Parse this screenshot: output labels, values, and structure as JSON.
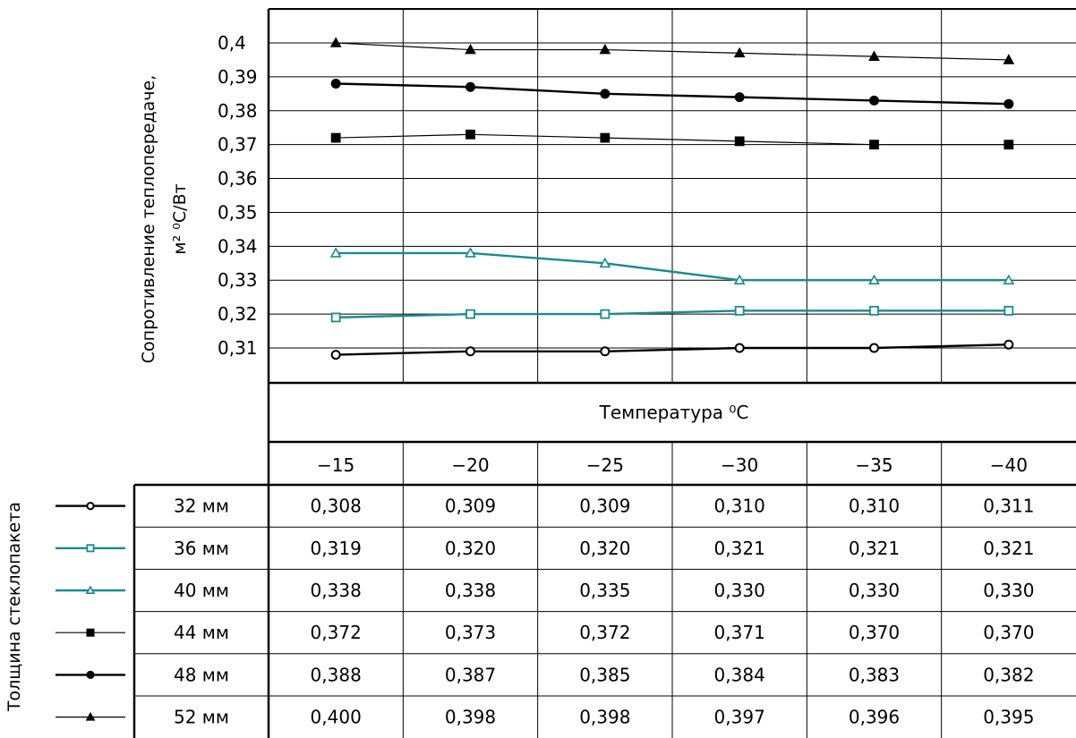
{
  "chart_data": {
    "type": "line",
    "ylabel_line1": "Сопротивление теплопередаче,",
    "ylabel_line2": "м² ⁰С/Вт",
    "xlabel": "Температура ⁰С",
    "table_label": "Толщина стеклопакета",
    "categories": [
      "−15",
      "−20",
      "−25",
      "−30",
      "−35",
      "−40"
    ],
    "y_ticks": [
      "0,4",
      "0,39",
      "0,38",
      "0,37",
      "0,36",
      "0,35",
      "0,34",
      "0,33",
      "0,32",
      "0,31"
    ],
    "y_tick_values": [
      0.4,
      0.39,
      0.38,
      0.37,
      0.36,
      0.35,
      0.34,
      0.33,
      0.32,
      0.31
    ],
    "ylim": [
      0.3,
      0.41
    ],
    "grid": true,
    "series": [
      {
        "name": "32 мм",
        "values": [
          0.308,
          0.309,
          0.309,
          0.31,
          0.31,
          0.311
        ],
        "labels": [
          "0,308",
          "0,309",
          "0,309",
          "0,310",
          "0,310",
          "0,311"
        ],
        "color": "#000000",
        "marker": "circle-open",
        "weight": "bold"
      },
      {
        "name": "36 мм",
        "values": [
          0.319,
          0.32,
          0.32,
          0.321,
          0.321,
          0.321
        ],
        "labels": [
          "0,319",
          "0,320",
          "0,320",
          "0,321",
          "0,321",
          "0,321"
        ],
        "color": "#1a8a91",
        "marker": "square-open",
        "weight": "bold"
      },
      {
        "name": "40 мм",
        "values": [
          0.338,
          0.338,
          0.335,
          0.33,
          0.33,
          0.33
        ],
        "labels": [
          "0,338",
          "0,338",
          "0,335",
          "0,330",
          "0,330",
          "0,330"
        ],
        "color": "#1a8a91",
        "marker": "triangle-open",
        "weight": "bold"
      },
      {
        "name": "44 мм",
        "values": [
          0.372,
          0.373,
          0.372,
          0.371,
          0.37,
          0.37
        ],
        "labels": [
          "0,372",
          "0,373",
          "0,372",
          "0,371",
          "0,370",
          "0,370"
        ],
        "color": "#000000",
        "marker": "square",
        "weight": "thin"
      },
      {
        "name": "48 мм",
        "values": [
          0.388,
          0.387,
          0.385,
          0.384,
          0.383,
          0.382
        ],
        "labels": [
          "0,388",
          "0,387",
          "0,385",
          "0,384",
          "0,383",
          "0,382"
        ],
        "color": "#000000",
        "marker": "circle",
        "weight": "bold"
      },
      {
        "name": "52 мм",
        "values": [
          0.4,
          0.398,
          0.398,
          0.397,
          0.396,
          0.395
        ],
        "labels": [
          "0,400",
          "0,398",
          "0,398",
          "0,397",
          "0,396",
          "0,395"
        ],
        "color": "#000000",
        "marker": "triangle",
        "weight": "thin"
      }
    ]
  }
}
